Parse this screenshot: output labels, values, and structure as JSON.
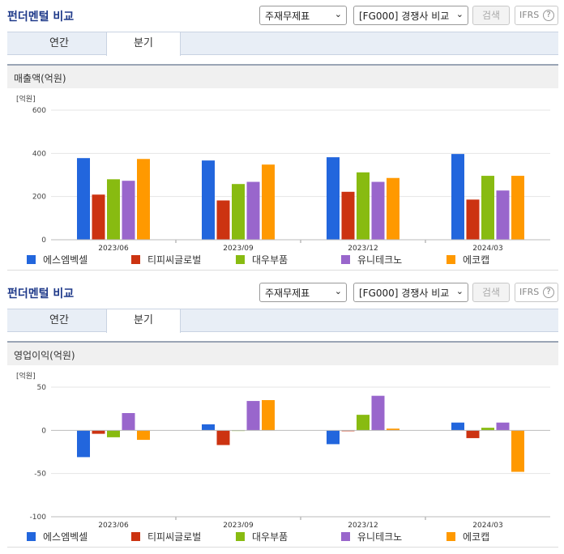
{
  "panels": [
    {
      "title": "펀더멘털 비교",
      "select1": "주재무제표",
      "select2": "[FG000] 경쟁사 비교",
      "search_label": "검색",
      "ifrs_label": "IFRS",
      "tabs": [
        "연간",
        "분기"
      ],
      "active_tab": 1,
      "section_title": "매출액(억원)",
      "unit": "[억원]"
    },
    {
      "title": "펀더멘털 비교",
      "select1": "주재무제표",
      "select2": "[FG000] 경쟁사 비교",
      "search_label": "검색",
      "ifrs_label": "IFRS",
      "tabs": [
        "연간",
        "분기"
      ],
      "active_tab": 1,
      "section_title": "영업이익(억원)",
      "unit": "[억원]"
    }
  ],
  "colors": [
    "#2266dd",
    "#cc3311",
    "#88bb11",
    "#9966cc",
    "#ff9900"
  ],
  "chart_data": [
    {
      "type": "bar",
      "title": "매출액(억원)",
      "ylabel": "[억원]",
      "categories": [
        "2023/06",
        "2023/09",
        "2023/12",
        "2024/03"
      ],
      "ylim": [
        0,
        600
      ],
      "yticks": [
        0,
        200,
        400,
        600
      ],
      "legend": "bottom",
      "series": [
        {
          "name": "에스엠벡셀",
          "values": [
            378,
            367,
            382,
            397
          ]
        },
        {
          "name": "티피씨글로벌",
          "values": [
            209,
            182,
            222,
            186
          ]
        },
        {
          "name": "대우부품",
          "values": [
            280,
            258,
            312,
            296
          ]
        },
        {
          "name": "유니테크노",
          "values": [
            273,
            268,
            268,
            228
          ]
        },
        {
          "name": "에코캡",
          "values": [
            374,
            348,
            286,
            296
          ]
        }
      ]
    },
    {
      "type": "bar",
      "title": "영업이익(억원)",
      "ylabel": "[억원]",
      "categories": [
        "2023/06",
        "2023/09",
        "2023/12",
        "2024/03"
      ],
      "ylim": [
        -100,
        50
      ],
      "yticks": [
        -100,
        -50,
        0,
        50
      ],
      "legend": "bottom",
      "series": [
        {
          "name": "에스엠벡셀",
          "values": [
            -31,
            7,
            -16,
            9
          ]
        },
        {
          "name": "티피씨글로벌",
          "values": [
            -4,
            -17,
            -1,
            -9
          ]
        },
        {
          "name": "대우부품",
          "values": [
            -8,
            0,
            18,
            3
          ]
        },
        {
          "name": "유니테크노",
          "values": [
            20,
            34,
            40,
            9
          ]
        },
        {
          "name": "에코캡",
          "values": [
            -11,
            35,
            2,
            -48
          ]
        }
      ]
    }
  ]
}
